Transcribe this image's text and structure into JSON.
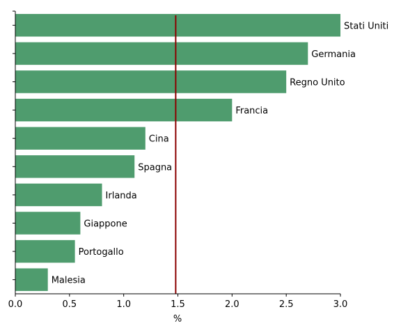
{
  "chart_data": {
    "type": "bar",
    "orientation": "horizontal",
    "categories": [
      "Stati Uniti",
      "Germania",
      "Regno Unito",
      "Francia",
      "Cina",
      "Spagna",
      "Irlanda",
      "Giappone",
      "Portogallo",
      "Malesia"
    ],
    "values": [
      3.0,
      2.7,
      2.5,
      2.0,
      1.2,
      1.1,
      0.8,
      0.6,
      0.55,
      0.3
    ],
    "xlabel": "%",
    "xlim": [
      0,
      3.0
    ],
    "xticks": [
      "0.0",
      "0.5",
      "1.0",
      "1.5",
      "2.0",
      "2.5",
      "3.0"
    ],
    "reference_line": {
      "value": 1.48,
      "color": "#8b0000"
    },
    "bar_color": "#4f9c6e",
    "grid": false,
    "legend": "none"
  }
}
